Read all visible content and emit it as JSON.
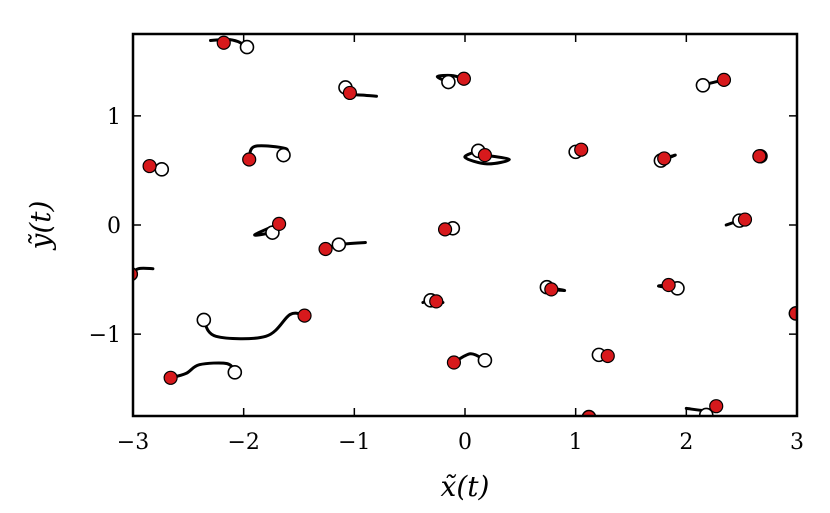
{
  "chart_data": {
    "type": "scatter",
    "title": "",
    "xlabel": "x̃(t)",
    "ylabel": "ỹ(t)",
    "xlim": [
      -3,
      3
    ],
    "ylim": [
      -1.75,
      1.75
    ],
    "grid": false,
    "legend": "none",
    "xticks": [
      -3,
      -2,
      -1,
      0,
      1,
      2,
      3
    ],
    "yticks": [
      -1,
      0,
      1
    ],
    "xtick_labels": [
      "−3",
      "−2",
      "−1",
      "0",
      "1",
      "2",
      "3"
    ],
    "ytick_labels": [
      "−1",
      "0",
      "1"
    ],
    "colors": {
      "final_marker": "#d7191c",
      "initial_marker": "#ffffff",
      "trajectory": "#000000"
    },
    "trajectories": [
      {
        "start": [
          -1.97,
          1.63
        ],
        "end": [
          -2.18,
          1.67
        ],
        "path": [
          [
            -1.97,
            1.63
          ],
          [
            -2.05,
            1.68
          ],
          [
            -2.15,
            1.7
          ],
          [
            -2.3,
            1.69
          ]
        ]
      },
      {
        "start": [
          -1.08,
          1.26
        ],
        "end": [
          -1.04,
          1.21
        ],
        "path": [
          [
            -1.08,
            1.26
          ],
          [
            -1.02,
            1.2
          ],
          [
            -0.92,
            1.19
          ],
          [
            -0.8,
            1.18
          ]
        ]
      },
      {
        "start": [
          -0.15,
          1.31
        ],
        "end": [
          -0.01,
          1.34
        ],
        "path": [
          [
            -0.15,
            1.31
          ],
          [
            -0.25,
            1.36
          ],
          [
            -0.12,
            1.37
          ],
          [
            -0.01,
            1.34
          ]
        ]
      },
      {
        "start": [
          2.15,
          1.28
        ],
        "end": [
          2.34,
          1.33
        ],
        "path": [
          [
            2.15,
            1.28
          ],
          [
            2.22,
            1.3
          ],
          [
            2.3,
            1.32
          ],
          [
            2.34,
            1.33
          ]
        ]
      },
      {
        "start": [
          -2.74,
          0.51
        ],
        "end": [
          -2.85,
          0.54
        ],
        "path": [
          [
            -2.74,
            0.51
          ],
          [
            -2.8,
            0.53
          ],
          [
            -2.85,
            0.54
          ]
        ]
      },
      {
        "start": [
          -1.64,
          0.64
        ],
        "end": [
          -1.95,
          0.6
        ],
        "path": [
          [
            -1.64,
            0.64
          ],
          [
            -1.62,
            0.7
          ],
          [
            -1.9,
            0.72
          ],
          [
            -1.95,
            0.6
          ]
        ]
      },
      {
        "start": [
          0.12,
          0.68
        ],
        "end": [
          0.18,
          0.64
        ],
        "path": [
          [
            0.12,
            0.68
          ],
          [
            0.0,
            0.62
          ],
          [
            0.2,
            0.56
          ],
          [
            0.4,
            0.6
          ],
          [
            0.18,
            0.64
          ]
        ]
      },
      {
        "start": [
          1.0,
          0.67
        ],
        "end": [
          1.05,
          0.69
        ],
        "path": [
          [
            1.0,
            0.67
          ],
          [
            1.03,
            0.68
          ],
          [
            1.05,
            0.69
          ]
        ]
      },
      {
        "start": [
          1.77,
          0.59
        ],
        "end": [
          1.8,
          0.61
        ],
        "path": [
          [
            1.77,
            0.59
          ],
          [
            1.9,
            0.64
          ],
          [
            1.8,
            0.61
          ]
        ]
      },
      {
        "start": [
          2.67,
          0.63
        ],
        "end": [
          2.66,
          0.63
        ],
        "path": [
          [
            2.67,
            0.63
          ],
          [
            2.66,
            0.63
          ]
        ]
      },
      {
        "start": [
          -1.74,
          -0.07
        ],
        "end": [
          -1.68,
          0.01
        ],
        "path": [
          [
            -1.74,
            -0.07
          ],
          [
            -1.9,
            -0.09
          ],
          [
            -1.68,
            0.01
          ]
        ]
      },
      {
        "start": [
          -1.14,
          -0.18
        ],
        "end": [
          -1.26,
          -0.22
        ],
        "path": [
          [
            -0.9,
            -0.16
          ],
          [
            -1.14,
            -0.18
          ],
          [
            -1.26,
            -0.22
          ]
        ]
      },
      {
        "start": [
          -0.11,
          -0.03
        ],
        "end": [
          -0.18,
          -0.04
        ],
        "path": [
          [
            -0.11,
            -0.03
          ],
          [
            -0.2,
            -0.02
          ],
          [
            -0.18,
            -0.04
          ]
        ]
      },
      {
        "start": [
          2.48,
          0.04
        ],
        "end": [
          2.53,
          0.05
        ],
        "path": [
          [
            2.36,
            0.0
          ],
          [
            2.48,
            0.04
          ],
          [
            2.53,
            0.05
          ]
        ]
      },
      {
        "start": [
          -3.02,
          -0.45
        ],
        "end": [
          -3.02,
          -0.45
        ],
        "path": [
          [
            -3.02,
            -0.45
          ],
          [
            -2.95,
            -0.4
          ],
          [
            -2.82,
            -0.4
          ]
        ]
      },
      {
        "start": [
          -2.36,
          -0.87
        ],
        "end": [
          -1.45,
          -0.83
        ],
        "path": [
          [
            -2.36,
            -0.87
          ],
          [
            -2.25,
            -1.02
          ],
          [
            -1.8,
            -1.02
          ],
          [
            -1.58,
            -0.82
          ],
          [
            -1.45,
            -0.83
          ]
        ]
      },
      {
        "start": [
          -0.31,
          -0.69
        ],
        "end": [
          -0.26,
          -0.7
        ],
        "path": [
          [
            -0.38,
            -0.71
          ],
          [
            -0.31,
            -0.69
          ],
          [
            -0.2,
            -0.71
          ],
          [
            -0.26,
            -0.7
          ]
        ]
      },
      {
        "start": [
          0.74,
          -0.57
        ],
        "end": [
          0.78,
          -0.59
        ],
        "path": [
          [
            0.74,
            -0.57
          ],
          [
            0.9,
            -0.6
          ],
          [
            0.78,
            -0.59
          ]
        ]
      },
      {
        "start": [
          1.92,
          -0.58
        ],
        "end": [
          1.84,
          -0.55
        ],
        "path": [
          [
            1.92,
            -0.58
          ],
          [
            1.75,
            -0.56
          ],
          [
            1.84,
            -0.55
          ]
        ]
      },
      {
        "start": [
          2.99,
          -0.81
        ],
        "end": [
          2.99,
          -0.81
        ],
        "path": [
          [
            2.99,
            -0.81
          ]
        ]
      },
      {
        "start": [
          -2.08,
          -1.35
        ],
        "end": [
          -2.66,
          -1.4
        ],
        "path": [
          [
            -2.08,
            -1.35
          ],
          [
            -2.15,
            -1.27
          ],
          [
            -2.4,
            -1.28
          ],
          [
            -2.52,
            -1.36
          ],
          [
            -2.66,
            -1.4
          ]
        ]
      },
      {
        "start": [
          0.18,
          -1.24
        ],
        "end": [
          -0.1,
          -1.26
        ],
        "path": [
          [
            0.18,
            -1.24
          ],
          [
            0.05,
            -1.18
          ],
          [
            -0.1,
            -1.26
          ]
        ]
      },
      {
        "start": [
          1.21,
          -1.19
        ],
        "end": [
          1.29,
          -1.2
        ],
        "path": [
          [
            1.21,
            -1.19
          ],
          [
            1.32,
            -1.18
          ],
          [
            1.29,
            -1.2
          ]
        ]
      },
      {
        "start": [
          1.12,
          -1.76
        ],
        "end": [
          1.12,
          -1.76
        ],
        "path": [
          [
            1.12,
            -1.76
          ]
        ]
      },
      {
        "start": [
          2.18,
          -1.74
        ],
        "end": [
          2.27,
          -1.66
        ],
        "path": [
          [
            2.0,
            -1.68
          ],
          [
            2.18,
            -1.7
          ],
          [
            2.27,
            -1.66
          ]
        ]
      }
    ]
  }
}
